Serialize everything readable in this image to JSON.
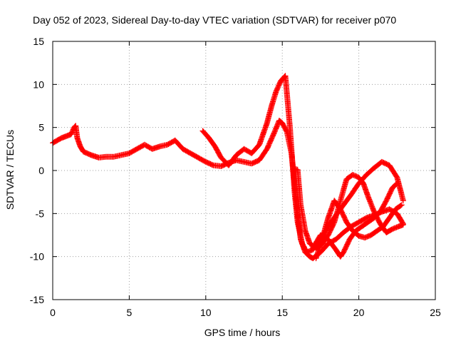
{
  "chart_data": {
    "type": "scatter",
    "title": "Day 052 of 2023, Sidereal Day-to-day VTEC variation (SDTVAR) for receiver p070",
    "xlabel": "GPS time / hours",
    "ylabel": "SDTVAR / TECUs",
    "xlim": [
      0,
      25
    ],
    "ylim": [
      -15,
      15
    ],
    "xticks": [
      "0",
      "5",
      "10",
      "15",
      "20",
      "25"
    ],
    "yticks": [
      "-15",
      "-10",
      "-5",
      "0",
      "5",
      "10",
      "15"
    ],
    "grid": true,
    "legend": "none",
    "marker": "+",
    "colors": {
      "series": "#ff0000"
    },
    "series": [
      {
        "x": [
          0.0,
          0.3,
          0.6,
          0.9,
          1.2,
          1.4,
          1.5,
          1.6,
          1.8,
          2.0,
          2.5,
          3.0,
          3.5,
          4.0,
          4.5,
          5.0,
          5.5,
          6.0,
          6.5,
          7.0,
          7.5,
          8.0,
          8.5,
          9.0,
          9.5,
          10.0,
          10.5,
          11.0,
          11.5,
          12.0,
          12.5,
          13.0,
          13.5,
          14.0,
          14.5,
          14.8,
          15.0,
          15.3,
          15.6,
          15.8,
          16.0,
          16.2,
          16.5,
          16.8,
          17.0,
          17.5,
          18.0,
          18.5,
          19.0,
          19.5,
          20.0,
          20.5,
          21.0,
          21.5,
          22.0,
          22.5,
          22.9
        ],
        "y": [
          3.2,
          3.5,
          3.8,
          4.0,
          4.2,
          5.0,
          5.2,
          3.8,
          2.8,
          2.2,
          1.8,
          1.5,
          1.6,
          1.6,
          1.8,
          2.0,
          2.5,
          3.0,
          2.5,
          2.8,
          3.0,
          3.5,
          2.5,
          2.0,
          1.5,
          1.0,
          0.6,
          0.5,
          0.9,
          1.2,
          1.0,
          0.8,
          1.2,
          2.5,
          4.5,
          5.8,
          5.5,
          4.5,
          2.0,
          -1.5,
          -5.0,
          -8.0,
          -9.5,
          -10.0,
          -10.2,
          -9.5,
          -8.5,
          -8.0,
          -7.2,
          -6.5,
          -6.0,
          -5.5,
          -5.2,
          -4.8,
          -4.5,
          -5.0,
          -6.2
        ]
      },
      {
        "x": [
          9.8,
          10.2,
          10.6,
          11.0,
          11.5,
          12.0,
          12.5,
          13.0,
          13.5,
          14.0,
          14.3,
          14.6,
          14.9,
          15.2,
          15.5,
          15.8,
          16.0,
          16.3,
          16.6,
          17.0,
          17.5,
          18.0,
          18.5,
          19.0,
          19.5,
          20.0,
          20.5,
          21.0,
          21.5,
          22.0,
          22.5,
          22.9
        ],
        "y": [
          4.6,
          3.8,
          2.8,
          1.5,
          0.6,
          1.8,
          2.5,
          2.0,
          3.0,
          5.5,
          7.5,
          9.2,
          10.4,
          11.0,
          5.0,
          -2.5,
          -6.0,
          -8.5,
          -9.5,
          -9.2,
          -8.0,
          -6.5,
          -5.2,
          -4.0,
          -2.8,
          -1.5,
          -0.5,
          0.3,
          1.0,
          0.6,
          -0.8,
          -3.5
        ]
      },
      {
        "x": [
          15.8,
          16.0,
          16.1,
          16.2,
          16.5,
          16.8,
          17.2,
          17.6,
          18.0,
          18.4,
          18.8,
          19.2,
          19.6,
          20.0,
          20.3,
          20.6,
          21.0,
          21.4,
          21.8,
          22.2,
          22.6,
          22.9
        ],
        "y": [
          0.2,
          0.1,
          -2.0,
          -4.0,
          -7.0,
          -8.5,
          -9.0,
          -8.6,
          -7.5,
          -6.0,
          -3.5,
          -1.0,
          -0.5,
          -0.8,
          -1.5,
          -3.0,
          -4.8,
          -6.2,
          -7.2,
          -6.8,
          -6.5,
          -6.3
        ]
      },
      {
        "x": [
          17.0,
          17.5,
          18.0,
          18.5,
          18.8,
          19.0,
          19.4,
          19.8,
          20.2,
          20.6,
          21.0,
          21.4,
          21.8,
          22.2,
          22.5
        ],
        "y": [
          -9.0,
          -7.5,
          -8.0,
          -9.2,
          -10.0,
          -9.5,
          -8.0,
          -7.0,
          -6.5,
          -6.0,
          -5.5,
          -4.8,
          -3.5,
          -2.0,
          -1.5
        ]
      },
      {
        "x": [
          17.2,
          17.6,
          18.0,
          18.4,
          18.8,
          19.2,
          19.6,
          20.0,
          20.4,
          20.8,
          21.2,
          21.6,
          22.0,
          22.4,
          22.8
        ],
        "y": [
          -10.2,
          -8.0,
          -5.5,
          -3.5,
          -4.5,
          -6.0,
          -7.0,
          -7.6,
          -7.8,
          -7.5,
          -7.0,
          -6.5,
          -5.5,
          -4.5,
          -4.0
        ]
      }
    ]
  }
}
